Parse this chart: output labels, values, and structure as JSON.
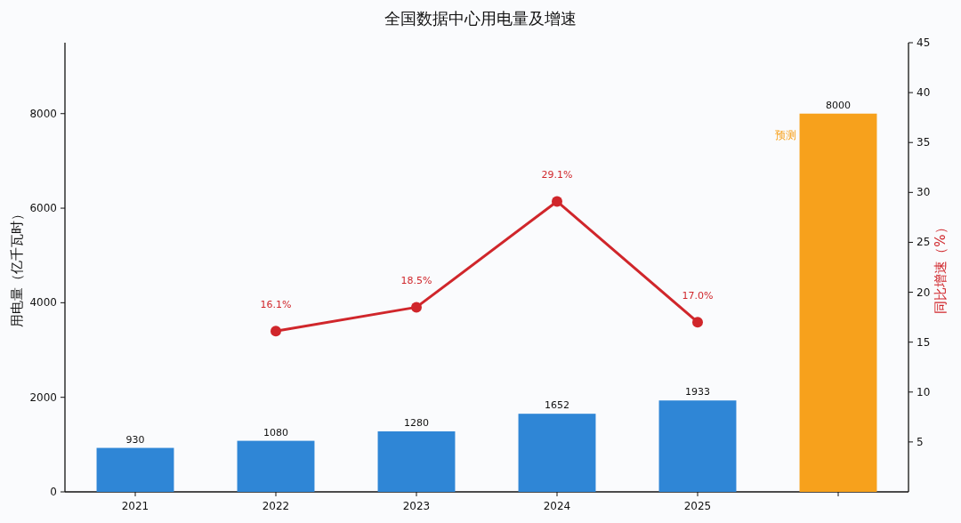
{
  "chart_data": {
    "type": "bar",
    "title": "全国数据中心用电量及增速",
    "ylabel": "用电量（亿千瓦时）",
    "y2label": "同比增速（%）",
    "categories": [
      "2021",
      "2022",
      "2023",
      "2024",
      "2025",
      null
    ],
    "series": [
      {
        "colors": [
          "#2f86d6",
          "#2f86d6",
          "#2f86d6",
          "#2f86d6",
          "#2f86d6",
          "#f7a11c"
        ],
        "values": [
          930,
          1080,
          1280,
          1652,
          1933,
          8000
        ],
        "data_labels": true
      },
      {
        "type": "line",
        "axis": "y2",
        "color": "#d0262b",
        "values": [
          null,
          16.1,
          18.5,
          29.1,
          17.0,
          null
        ],
        "value_labels": [
          null,
          "16.1%",
          "18.5%",
          "29.1%",
          "17.0%",
          null
        ],
        "marker": "circle"
      }
    ],
    "ylim": [
      0,
      9500
    ],
    "yticks": [
      0,
      2000,
      4000,
      6000,
      8000
    ],
    "y2lim": [
      0,
      45
    ],
    "y2ticks": [
      5,
      10,
      15,
      20,
      25,
      30,
      35,
      40,
      45
    ],
    "annotations": [
      "预测"
    ],
    "grid": false
  }
}
